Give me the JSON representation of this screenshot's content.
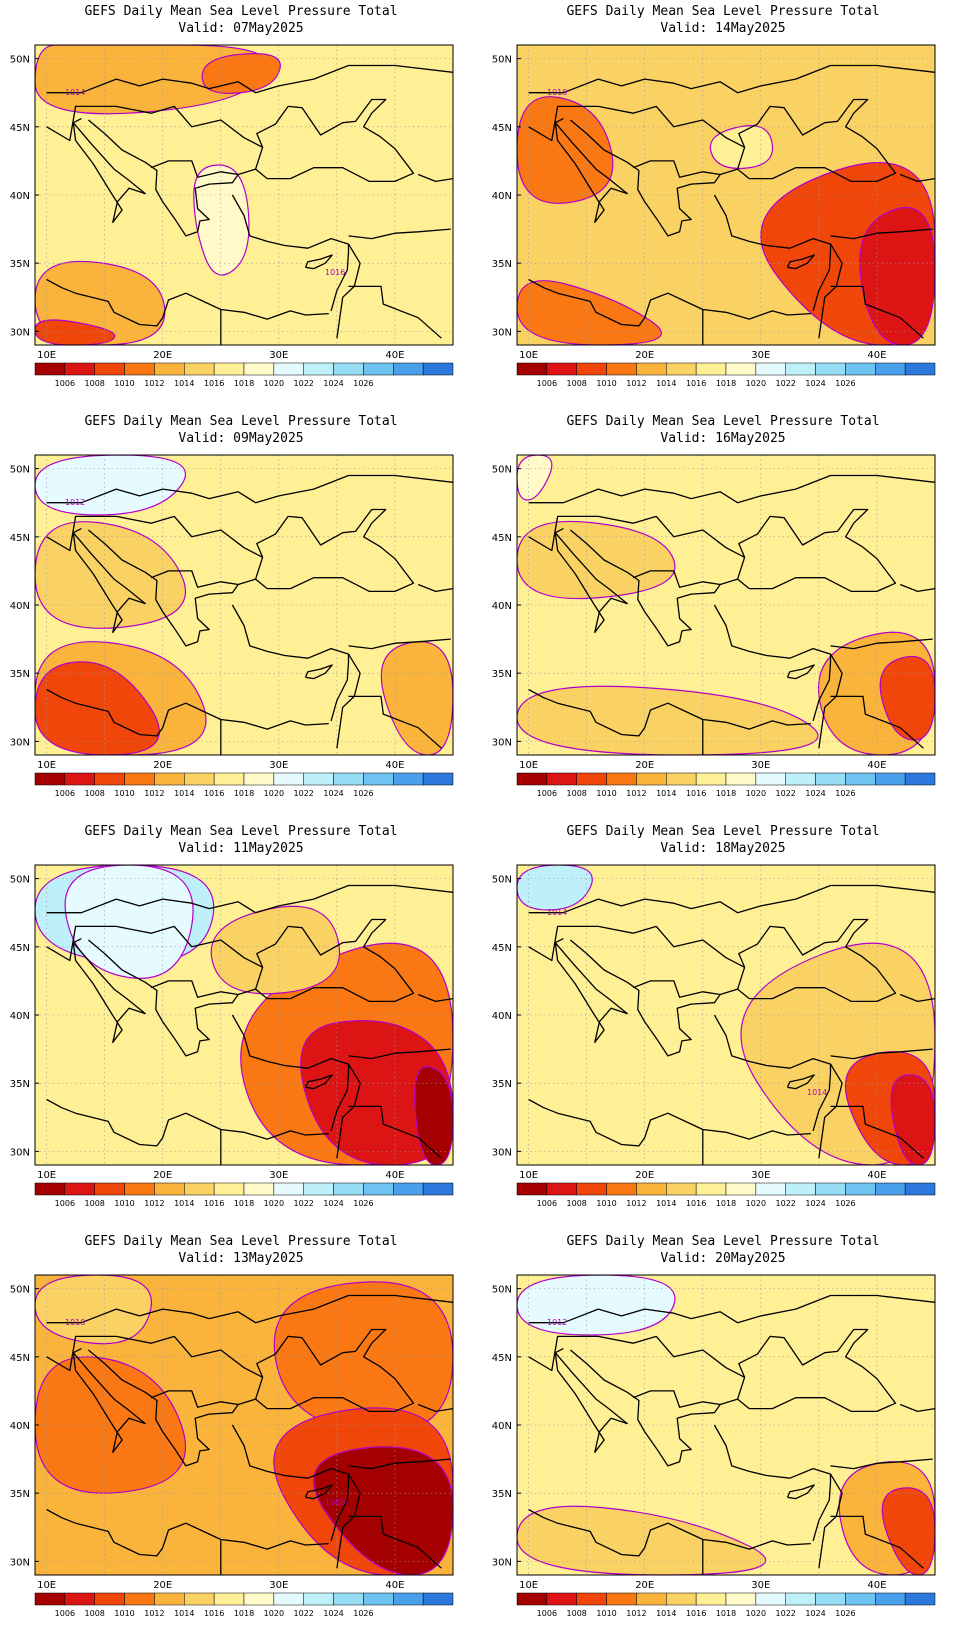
{
  "title": "GEFS Daily Mean Sea Level Pressure Total",
  "valid_prefix": "Valid:",
  "lat_labels": [
    "50N",
    "45N",
    "40N",
    "35N",
    "30N"
  ],
  "lon_labels": [
    "10E",
    "20E",
    "30E",
    "40E"
  ],
  "colorbar": {
    "colors": [
      "#a50000",
      "#dc1414",
      "#f0460a",
      "#fa7814",
      "#fab43c",
      "#fad264",
      "#fff096",
      "#fffac8",
      "#e6fbff",
      "#bef0fa",
      "#96dcf5",
      "#6ec3f0",
      "#4ba0eb",
      "#2d78dc"
    ],
    "labels": [
      "1006",
      "1008",
      "1010",
      "1012",
      "1014",
      "1016",
      "1018",
      "1020",
      "1022",
      "1024",
      "1026"
    ]
  },
  "contour_color": "#b400c8",
  "panels": [
    {
      "date": "07May2025",
      "bg_level": 6,
      "contour_labels": [
        "1014",
        "1016"
      ],
      "blobs": [
        {
          "level": 4,
          "pts": [
            [
              10,
              0
            ],
            [
              60,
              0
            ],
            [
              50,
              20
            ],
            [
              0,
              25
            ],
            [
              0,
              0
            ]
          ]
        },
        {
          "level": 3,
          "pts": [
            [
              40,
              4
            ],
            [
              60,
              2
            ],
            [
              57,
              15
            ],
            [
              40,
              17
            ]
          ]
        },
        {
          "level": 7,
          "pts": [
            [
              38,
              40
            ],
            [
              50,
              40
            ],
            [
              52,
              70
            ],
            [
              43,
              80
            ],
            [
              38,
              60
            ]
          ]
        },
        {
          "level": 4,
          "pts": [
            [
              0,
              70
            ],
            [
              30,
              75
            ],
            [
              32,
              100
            ],
            [
              0,
              100
            ]
          ]
        },
        {
          "level": 2,
          "pts": [
            [
              0,
              90
            ],
            [
              20,
              95
            ],
            [
              18,
              100
            ],
            [
              0,
              100
            ]
          ]
        }
      ]
    },
    {
      "date": "14May2025",
      "bg_level": 5,
      "contour_labels": [
        "1010"
      ],
      "blobs": [
        {
          "level": 3,
          "pts": [
            [
              0,
              15
            ],
            [
              20,
              20
            ],
            [
              25,
              50
            ],
            [
              0,
              55
            ]
          ]
        },
        {
          "level": 2,
          "pts": [
            [
              50,
              55
            ],
            [
              100,
              30
            ],
            [
              100,
              100
            ],
            [
              75,
              100
            ]
          ]
        },
        {
          "level": 1,
          "pts": [
            [
              80,
              60
            ],
            [
              100,
              50
            ],
            [
              100,
              100
            ],
            [
              85,
              100
            ]
          ]
        },
        {
          "level": 3,
          "pts": [
            [
              0,
              75
            ],
            [
              25,
              85
            ],
            [
              40,
              100
            ],
            [
              0,
              100
            ]
          ]
        },
        {
          "level": 6,
          "pts": [
            [
              45,
              30
            ],
            [
              60,
              25
            ],
            [
              62,
              40
            ],
            [
              48,
              42
            ]
          ]
        }
      ]
    },
    {
      "date": "09May2025",
      "bg_level": 6,
      "contour_labels": [
        "1012"
      ],
      "blobs": [
        {
          "level": 8,
          "pts": [
            [
              0,
              0
            ],
            [
              40,
              0
            ],
            [
              30,
              20
            ],
            [
              0,
              20
            ]
          ]
        },
        {
          "level": 4,
          "pts": [
            [
              0,
              60
            ],
            [
              35,
              65
            ],
            [
              45,
              100
            ],
            [
              0,
              100
            ]
          ]
        },
        {
          "level": 2,
          "pts": [
            [
              0,
              70
            ],
            [
              20,
              68
            ],
            [
              35,
              100
            ],
            [
              0,
              100
            ]
          ]
        },
        {
          "level": 4,
          "pts": [
            [
              80,
              65
            ],
            [
              100,
              60
            ],
            [
              100,
              100
            ],
            [
              88,
              100
            ]
          ]
        },
        {
          "level": 5,
          "pts": [
            [
              0,
              20
            ],
            [
              30,
              25
            ],
            [
              40,
              55
            ],
            [
              0,
              60
            ]
          ]
        }
      ]
    },
    {
      "date": "16May2025",
      "bg_level": 6,
      "contour_labels": [],
      "blobs": [
        {
          "level": 5,
          "pts": [
            [
              0,
              20
            ],
            [
              35,
              25
            ],
            [
              40,
              45
            ],
            [
              0,
              50
            ]
          ]
        },
        {
          "level": 4,
          "pts": [
            [
              70,
              65
            ],
            [
              100,
              55
            ],
            [
              100,
              100
            ],
            [
              75,
              100
            ]
          ]
        },
        {
          "level": 2,
          "pts": [
            [
              85,
              70
            ],
            [
              100,
              65
            ],
            [
              100,
              95
            ],
            [
              90,
              95
            ]
          ]
        },
        {
          "level": 5,
          "pts": [
            [
              0,
              75
            ],
            [
              60,
              80
            ],
            [
              80,
              100
            ],
            [
              0,
              100
            ]
          ]
        },
        {
          "level": 7,
          "pts": [
            [
              0,
              0
            ],
            [
              10,
              0
            ],
            [
              5,
              15
            ],
            [
              0,
              15
            ]
          ]
        }
      ]
    },
    {
      "date": "11May2025",
      "bg_level": 6,
      "contour_labels": [],
      "blobs": [
        {
          "level": 9,
          "pts": [
            [
              0,
              0
            ],
            [
              45,
              0
            ],
            [
              40,
              35
            ],
            [
              0,
              30
            ]
          ]
        },
        {
          "level": 8,
          "pts": [
            [
              5,
              0
            ],
            [
              40,
              0
            ],
            [
              35,
              40
            ],
            [
              10,
              35
            ]
          ]
        },
        {
          "level": 3,
          "pts": [
            [
              45,
              45
            ],
            [
              100,
              15
            ],
            [
              100,
              100
            ],
            [
              55,
              100
            ]
          ]
        },
        {
          "level": 1,
          "pts": [
            [
              60,
              55
            ],
            [
              85,
              50
            ],
            [
              100,
              65
            ],
            [
              100,
              100
            ],
            [
              70,
              100
            ]
          ]
        },
        {
          "level": 0,
          "pts": [
            [
              90,
              65
            ],
            [
              100,
              70
            ],
            [
              100,
              100
            ],
            [
              92,
              100
            ]
          ]
        },
        {
          "level": 5,
          "pts": [
            [
              40,
              20
            ],
            [
              70,
              10
            ],
            [
              75,
              40
            ],
            [
              45,
              45
            ]
          ]
        }
      ]
    },
    {
      "date": "18May2025",
      "bg_level": 6,
      "contour_labels": [
        "1014",
        "1014"
      ],
      "blobs": [
        {
          "level": 9,
          "pts": [
            [
              0,
              0
            ],
            [
              20,
              0
            ],
            [
              15,
              15
            ],
            [
              0,
              15
            ]
          ]
        },
        {
          "level": 5,
          "pts": [
            [
              45,
              45
            ],
            [
              100,
              15
            ],
            [
              100,
              100
            ],
            [
              70,
              100
            ]
          ]
        },
        {
          "level": 2,
          "pts": [
            [
              75,
              65
            ],
            [
              100,
              60
            ],
            [
              100,
              100
            ],
            [
              85,
              100
            ]
          ]
        },
        {
          "level": 1,
          "pts": [
            [
              88,
              70
            ],
            [
              100,
              70
            ],
            [
              100,
              100
            ],
            [
              92,
              100
            ]
          ]
        }
      ]
    },
    {
      "date": "13May2025",
      "bg_level": 4,
      "contour_labels": [
        "1010",
        "1008"
      ],
      "blobs": [
        {
          "level": 3,
          "pts": [
            [
              55,
              5
            ],
            [
              100,
              0
            ],
            [
              100,
              55
            ],
            [
              60,
              50
            ]
          ]
        },
        {
          "level": 2,
          "pts": [
            [
              50,
              50
            ],
            [
              100,
              40
            ],
            [
              100,
              100
            ],
            [
              70,
              100
            ]
          ]
        },
        {
          "level": 0,
          "pts": [
            [
              60,
              60
            ],
            [
              100,
              55
            ],
            [
              100,
              100
            ],
            [
              80,
              100
            ]
          ]
        },
        {
          "level": 3,
          "pts": [
            [
              0,
              25
            ],
            [
              30,
              30
            ],
            [
              40,
              70
            ],
            [
              0,
              75
            ]
          ]
        },
        {
          "level": 5,
          "pts": [
            [
              0,
              0
            ],
            [
              30,
              0
            ],
            [
              25,
              25
            ],
            [
              0,
              20
            ]
          ]
        }
      ]
    },
    {
      "date": "20May2025",
      "bg_level": 6,
      "contour_labels": [
        "1012"
      ],
      "blobs": [
        {
          "level": 8,
          "pts": [
            [
              0,
              0
            ],
            [
              40,
              0
            ],
            [
              35,
              20
            ],
            [
              0,
              20
            ]
          ]
        },
        {
          "level": 4,
          "pts": [
            [
              75,
              65
            ],
            [
              100,
              60
            ],
            [
              100,
              100
            ],
            [
              80,
              100
            ]
          ]
        },
        {
          "level": 2,
          "pts": [
            [
              85,
              72
            ],
            [
              100,
              70
            ],
            [
              100,
              100
            ],
            [
              92,
              100
            ]
          ]
        },
        {
          "level": 5,
          "pts": [
            [
              0,
              75
            ],
            [
              40,
              80
            ],
            [
              70,
              100
            ],
            [
              0,
              100
            ]
          ]
        }
      ]
    }
  ]
}
